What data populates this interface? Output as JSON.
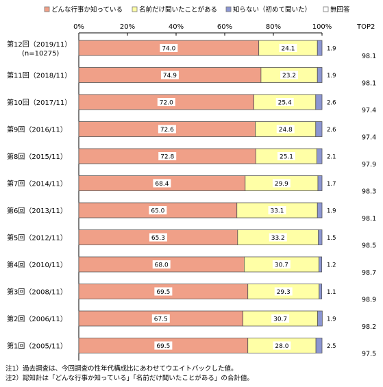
{
  "chart_data": {
    "type": "bar",
    "stacked": true,
    "orientation": "horizontal",
    "legend": [
      {
        "label": "どんな行事か知っている",
        "color": "#f0a088"
      },
      {
        "label": "名前だけ聞いたことがある",
        "color": "#ffffa6"
      },
      {
        "label": "知らない（初めて聞いた）",
        "color": "#8c96d2"
      },
      {
        "label": "無回答",
        "color": "#ffffff"
      }
    ],
    "legend_position": "top",
    "x_ticks": [
      "0%",
      "20%",
      "40%",
      "60%",
      "80%",
      "100%"
    ],
    "xlim": [
      0,
      100
    ],
    "top2_header": "TOP2",
    "categories": [
      {
        "label": "第12回（2019/11）",
        "sublabel": "(n=10275)"
      },
      {
        "label": "第11回（2018/11）",
        "sublabel": ""
      },
      {
        "label": "第10回（2017/11）",
        "sublabel": ""
      },
      {
        "label": "第9回（2016/11）",
        "sublabel": ""
      },
      {
        "label": "第8回（2015/11）",
        "sublabel": ""
      },
      {
        "label": "第7回（2014/11）",
        "sublabel": ""
      },
      {
        "label": "第6回（2013/11）",
        "sublabel": ""
      },
      {
        "label": "第5回（2012/11）",
        "sublabel": ""
      },
      {
        "label": "第4回（2010/11）",
        "sublabel": ""
      },
      {
        "label": "第3回（2008/11）",
        "sublabel": ""
      },
      {
        "label": "第2回（2006/11）",
        "sublabel": ""
      },
      {
        "label": "第1回（2005/11）",
        "sublabel": ""
      }
    ],
    "series": [
      {
        "name": "どんな行事か知っている",
        "values": [
          74.0,
          74.9,
          72.0,
          72.6,
          72.8,
          68.4,
          65.0,
          65.3,
          68.0,
          69.5,
          67.5,
          69.5
        ]
      },
      {
        "name": "名前だけ聞いたことがある",
        "values": [
          24.1,
          23.2,
          25.4,
          24.8,
          25.1,
          29.9,
          33.1,
          33.2,
          30.7,
          29.3,
          30.7,
          28.0
        ]
      },
      {
        "name": "知らない（初めて聞いた）",
        "values": [
          1.9,
          1.9,
          2.6,
          2.6,
          2.1,
          1.7,
          1.9,
          1.5,
          1.2,
          1.1,
          1.9,
          2.5
        ]
      }
    ],
    "value_labels": [
      [
        "74.0",
        "24.1",
        "1.9"
      ],
      [
        "74.9",
        "23.2",
        "1.9"
      ],
      [
        "72.0",
        "25.4",
        "2.6"
      ],
      [
        "72.6",
        "24.8",
        "2.6"
      ],
      [
        "72.8",
        "25.1",
        "2.1"
      ],
      [
        "68.4",
        "29.9",
        "1.7"
      ],
      [
        "65.0",
        "33.1",
        "1.9"
      ],
      [
        "65.3",
        "33.2",
        "1.5"
      ],
      [
        "68.0",
        "30.7",
        "1.2"
      ],
      [
        "69.5",
        "29.3",
        "1.1"
      ],
      [
        "67.5",
        "30.7",
        "1.9"
      ],
      [
        "69.5",
        "28.0",
        "2.5"
      ]
    ],
    "top2": [
      "98.1",
      "98.1",
      "97.4",
      "97.4",
      "97.9",
      "98.3",
      "98.1",
      "98.5",
      "98.7",
      "98.9",
      "98.2",
      "97.5"
    ]
  },
  "notes": [
    "注1）過去調査は、今回調査の性年代構成比にあわせてウエイトバックした値。",
    "注2）認知計は「どんな行事か知っている」「名前だけ聞いたことがある」の合計値。"
  ]
}
